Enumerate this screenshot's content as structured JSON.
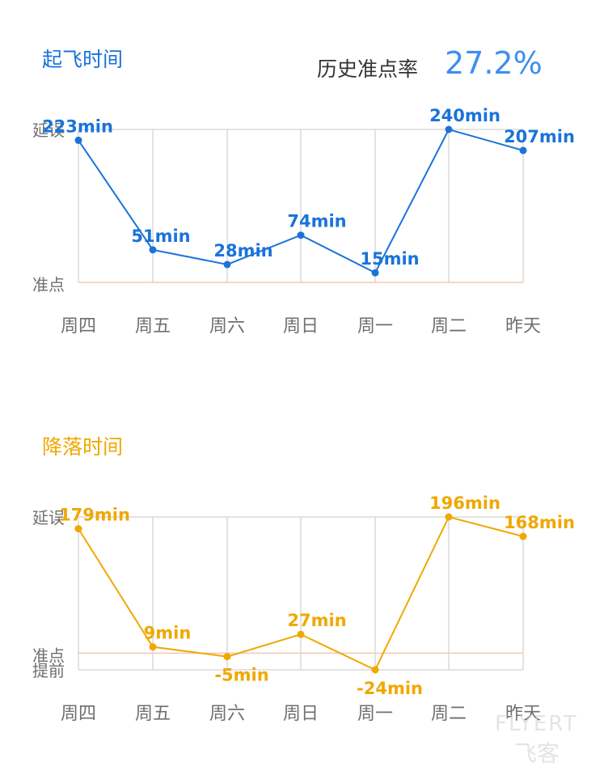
{
  "departure_section": {
    "title": "起飞时间"
  },
  "arrival_section": {
    "title": "降落时间"
  },
  "punctuality": {
    "label": "历史准点率",
    "value": "27.2%"
  },
  "watermark": {
    "line1": "FLYERT",
    "line2": "飞客"
  },
  "colors": {
    "departure": "#1a73d9",
    "arrival": "#f0a800",
    "grid": "#dadada",
    "baseline": "#f3c9b3"
  },
  "chart_data": [
    {
      "type": "line",
      "title": "起飞时间",
      "categories": [
        "周四",
        "周五",
        "周六",
        "周日",
        "周一",
        "周二",
        "昨天"
      ],
      "values": [
        223,
        51,
        28,
        74,
        15,
        240,
        207
      ],
      "value_labels": [
        "223min",
        "51min",
        "28min",
        "74min",
        "15min",
        "240min",
        "207min"
      ],
      "y_labels": {
        "top": "延误",
        "zero": "准点"
      },
      "ylim": [
        0,
        240
      ],
      "grid": true
    },
    {
      "type": "line",
      "title": "降落时间",
      "categories": [
        "周四",
        "周五",
        "周六",
        "周日",
        "周一",
        "周二",
        "昨天"
      ],
      "values": [
        179,
        9,
        -5,
        27,
        -24,
        196,
        168
      ],
      "value_labels": [
        "179min",
        "9min",
        "-5min",
        "27min",
        "-24min",
        "196min",
        "168min"
      ],
      "y_labels": {
        "top": "延误",
        "zero": "准点",
        "bottom": "提前"
      },
      "ylim": [
        -24,
        196
      ],
      "grid": true
    }
  ]
}
